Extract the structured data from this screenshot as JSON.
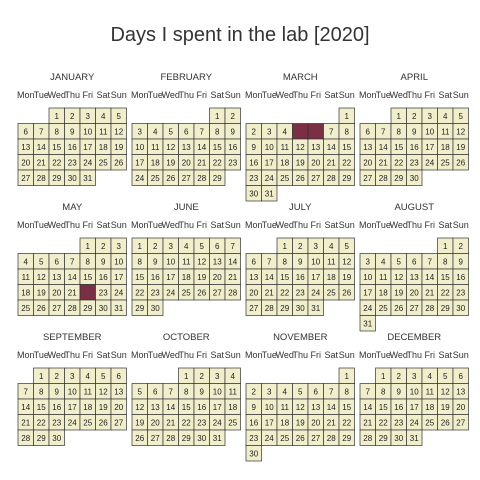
{
  "chart_data": {
    "type": "heatmap",
    "title": "Days I spent in the lab [2020]",
    "year": 2020,
    "weekday_labels": [
      "Mon",
      "Tue",
      "Wed",
      "Thu",
      "Fri",
      "Sat",
      "Sun"
    ],
    "months": [
      {
        "name": "JANUARY",
        "days": 31,
        "first_weekday": 2
      },
      {
        "name": "FEBRUARY",
        "days": 29,
        "first_weekday": 5
      },
      {
        "name": "MARCH",
        "days": 31,
        "first_weekday": 6
      },
      {
        "name": "APRIL",
        "days": 30,
        "first_weekday": 2
      },
      {
        "name": "MAY",
        "days": 31,
        "first_weekday": 4
      },
      {
        "name": "JUNE",
        "days": 30,
        "first_weekday": 0
      },
      {
        "name": "JULY",
        "days": 31,
        "first_weekday": 2
      },
      {
        "name": "AUGUST",
        "days": 31,
        "first_weekday": 5
      },
      {
        "name": "SEPTEMBER",
        "days": 30,
        "first_weekday": 1
      },
      {
        "name": "OCTOBER",
        "days": 31,
        "first_weekday": 3
      },
      {
        "name": "NOVEMBER",
        "days": 30,
        "first_weekday": 6
      },
      {
        "name": "DECEMBER",
        "days": 31,
        "first_weekday": 1
      }
    ],
    "lab_days": [
      {
        "month": "MARCH",
        "day": 5
      },
      {
        "month": "MARCH",
        "day": 6
      },
      {
        "month": "MAY",
        "day": 22
      }
    ],
    "colors": {
      "default": "#f1eecb",
      "lab": "#7a2f45",
      "border": "#333333"
    }
  }
}
